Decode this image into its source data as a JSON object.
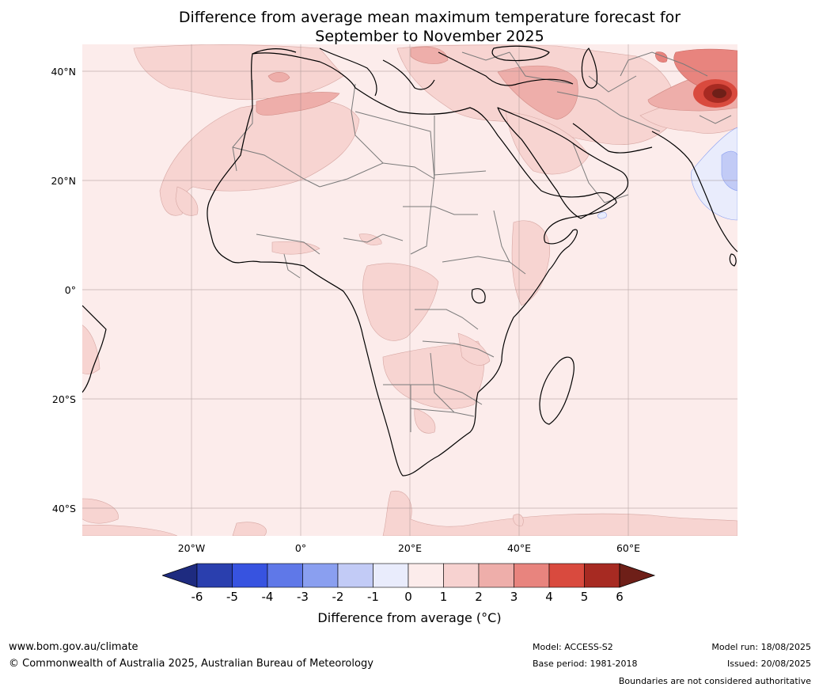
{
  "title_line1": "Difference from average mean maximum temperature forecast for",
  "title_line2": "September to November 2025",
  "map": {
    "lat_labels": [
      "40°N",
      "20°N",
      "0°",
      "20°S",
      "40°S"
    ],
    "lon_labels": [
      "20°W",
      "0°",
      "20°E",
      "40°E",
      "60°E"
    ],
    "lat_values": [
      40,
      20,
      0,
      -20,
      -40
    ],
    "lon_values": [
      -20,
      0,
      20,
      40,
      60
    ],
    "extent": {
      "lon_min": -40,
      "lon_max": 80,
      "lat_min": -45,
      "lat_max": 45
    }
  },
  "colorbar": {
    "title": "Difference from average (°C)",
    "ticks": [
      "-6",
      "-5",
      "-4",
      "-3",
      "-2",
      "-1",
      "0",
      "1",
      "2",
      "3",
      "4",
      "5",
      "6"
    ],
    "colors": [
      "#1e2b80",
      "#2a3fae",
      "#3753e0",
      "#5f78e8",
      "#8a9ff0",
      "#c2cbf6",
      "#e9ecfc",
      "#fceceb",
      "#f7d2d0",
      "#eeaeaa",
      "#e8847e",
      "#d94a3e",
      "#a72a22",
      "#6e1f18"
    ]
  },
  "footer": {
    "site": "www.bom.gov.au/climate",
    "copyright": "© Commonwealth of Australia 2025, Australian Bureau of Meteorology",
    "model": "Model: ACCESS-S2",
    "base_period": "Base period: 1981-2018",
    "model_run": "Model run: 18/08/2025",
    "issued": "Issued: 20/08/2025",
    "disclaimer": "Boundaries are not considered authoritative"
  }
}
